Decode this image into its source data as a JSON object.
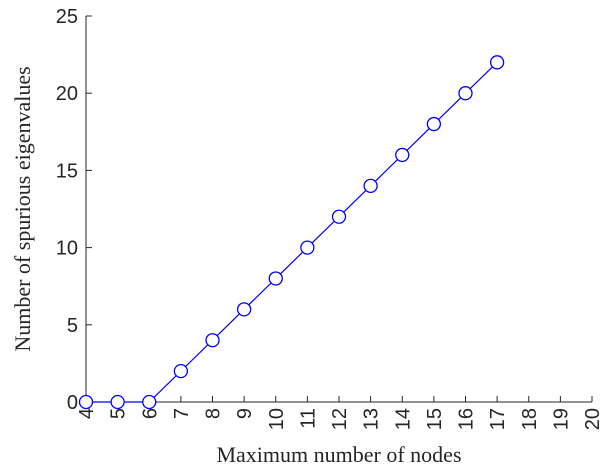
{
  "chart_data": {
    "type": "line",
    "xlabel": "Maximum number of nodes",
    "ylabel": "Number of spurious eigenvalues",
    "xlim": [
      4,
      20
    ],
    "ylim": [
      0,
      25
    ],
    "x_ticks": [
      4,
      5,
      6,
      7,
      8,
      9,
      10,
      11,
      12,
      13,
      14,
      15,
      16,
      17,
      18,
      19,
      20
    ],
    "y_ticks": [
      0,
      5,
      10,
      15,
      20,
      25
    ],
    "x_tick_rotation": "vertical",
    "grid": false,
    "series": [
      {
        "x": [
          4,
          5,
          6,
          7,
          8,
          9,
          10,
          11,
          12,
          13,
          14,
          15,
          16,
          17
        ],
        "y": [
          0,
          0,
          0,
          2,
          4,
          6,
          8,
          10,
          12,
          14,
          16,
          18,
          20,
          22
        ],
        "color": "#0000ff",
        "marker": "open-circle",
        "line": "solid"
      }
    ]
  }
}
